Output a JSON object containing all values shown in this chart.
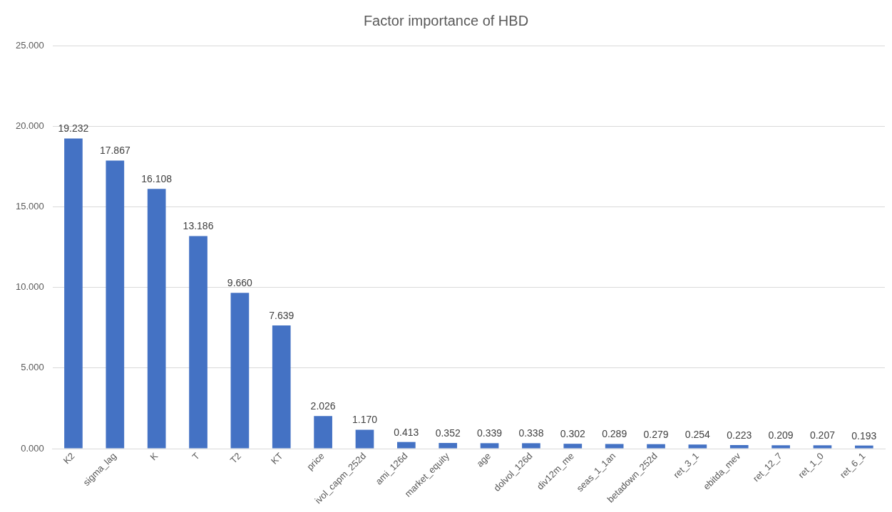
{
  "chart_data": {
    "type": "bar",
    "title": "Factor importance of HBD",
    "categories": [
      "K2",
      "sigma_lag",
      "K",
      "T",
      "T2",
      "KT",
      "price",
      "ivol_capm_252d",
      "ami_126d",
      "market_equity",
      "age",
      "dolvol_126d",
      "div12m_me",
      "seas_1_1an",
      "betadown_252d",
      "ret_3_1",
      "ebitda_mev",
      "ret_12_7",
      "ret_1_0",
      "ret_6_1"
    ],
    "values": [
      19.232,
      17.867,
      16.108,
      13.186,
      9.66,
      7.639,
      2.026,
      1.17,
      0.413,
      0.352,
      0.339,
      0.338,
      0.302,
      0.289,
      0.279,
      0.254,
      0.223,
      0.209,
      0.207,
      0.193
    ],
    "value_labels": [
      "19.232",
      "17.867",
      "16.108",
      "13.186",
      "9.660",
      "7.639",
      "2.026",
      "1.170",
      "0.413",
      "0.352",
      "0.339",
      "0.338",
      "0.302",
      "0.289",
      "0.279",
      "0.254",
      "0.223",
      "0.209",
      "0.207",
      "0.193"
    ],
    "color": "#4472c4",
    "ylim": [
      0,
      25
    ],
    "yticks": [
      {
        "value": 0,
        "label": "0.000"
      },
      {
        "value": 5,
        "label": "5.000"
      },
      {
        "value": 10,
        "label": "10.000"
      },
      {
        "value": 15,
        "label": "15.000"
      },
      {
        "value": 20,
        "label": "20.000"
      },
      {
        "value": 25,
        "label": "25.000"
      }
    ],
    "grid": "y"
  }
}
